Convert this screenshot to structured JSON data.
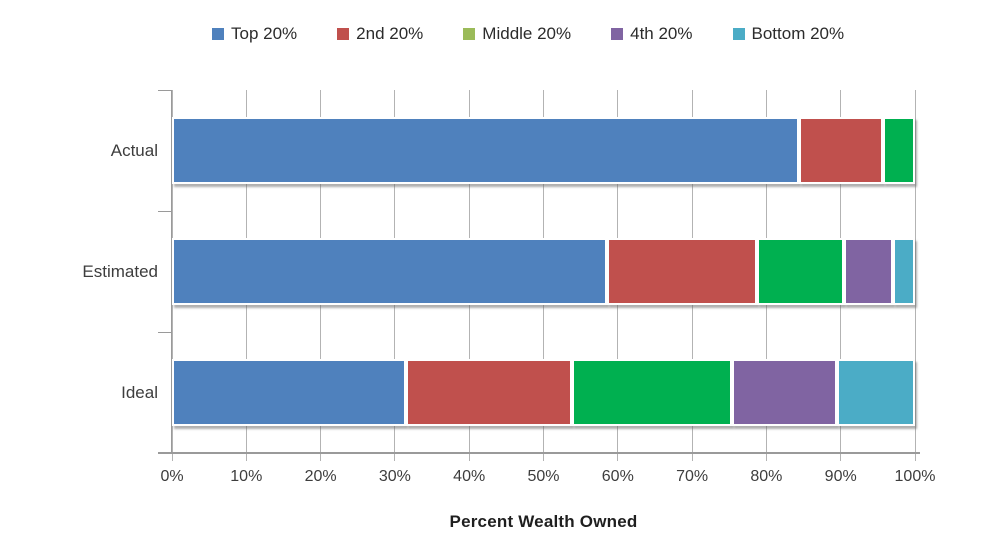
{
  "chart_data": {
    "type": "bar",
    "orientation": "horizontal",
    "stacked": true,
    "xlabel": "Percent Wealth Owned",
    "categories": [
      "Actual",
      "Estimated",
      "Ideal"
    ],
    "series": [
      {
        "name": "Top 20%",
        "color": "#4f81bd",
        "legend_color": "#4f81bd",
        "values": [
          84.4,
          58.5,
          31.5
        ]
      },
      {
        "name": "2nd 20%",
        "color": "#c0504d",
        "legend_color": "#c0504d",
        "values": [
          11.3,
          20.2,
          22.3
        ]
      },
      {
        "name": "Middle 20%",
        "color": "#00b050",
        "legend_color": "#9bbb59",
        "values": [
          4.3,
          11.8,
          21.6
        ]
      },
      {
        "name": "4th 20%",
        "color": "#8064a2",
        "legend_color": "#8064a2",
        "values": [
          0,
          6.5,
          14.1
        ]
      },
      {
        "name": "Bottom 20%",
        "color": "#4bacc6",
        "legend_color": "#4bacc6",
        "values": [
          0,
          3.0,
          10.5
        ]
      }
    ],
    "x_ticks": [
      "0%",
      "10%",
      "20%",
      "30%",
      "40%",
      "50%",
      "60%",
      "70%",
      "80%",
      "90%",
      "100%"
    ],
    "xlim": [
      0,
      100
    ],
    "grid": "vertical",
    "legend_position": "top",
    "colors": {
      "gridline": "#b3b3b3",
      "axis": "#9a9a9a",
      "text": "#3d3d3d"
    }
  }
}
